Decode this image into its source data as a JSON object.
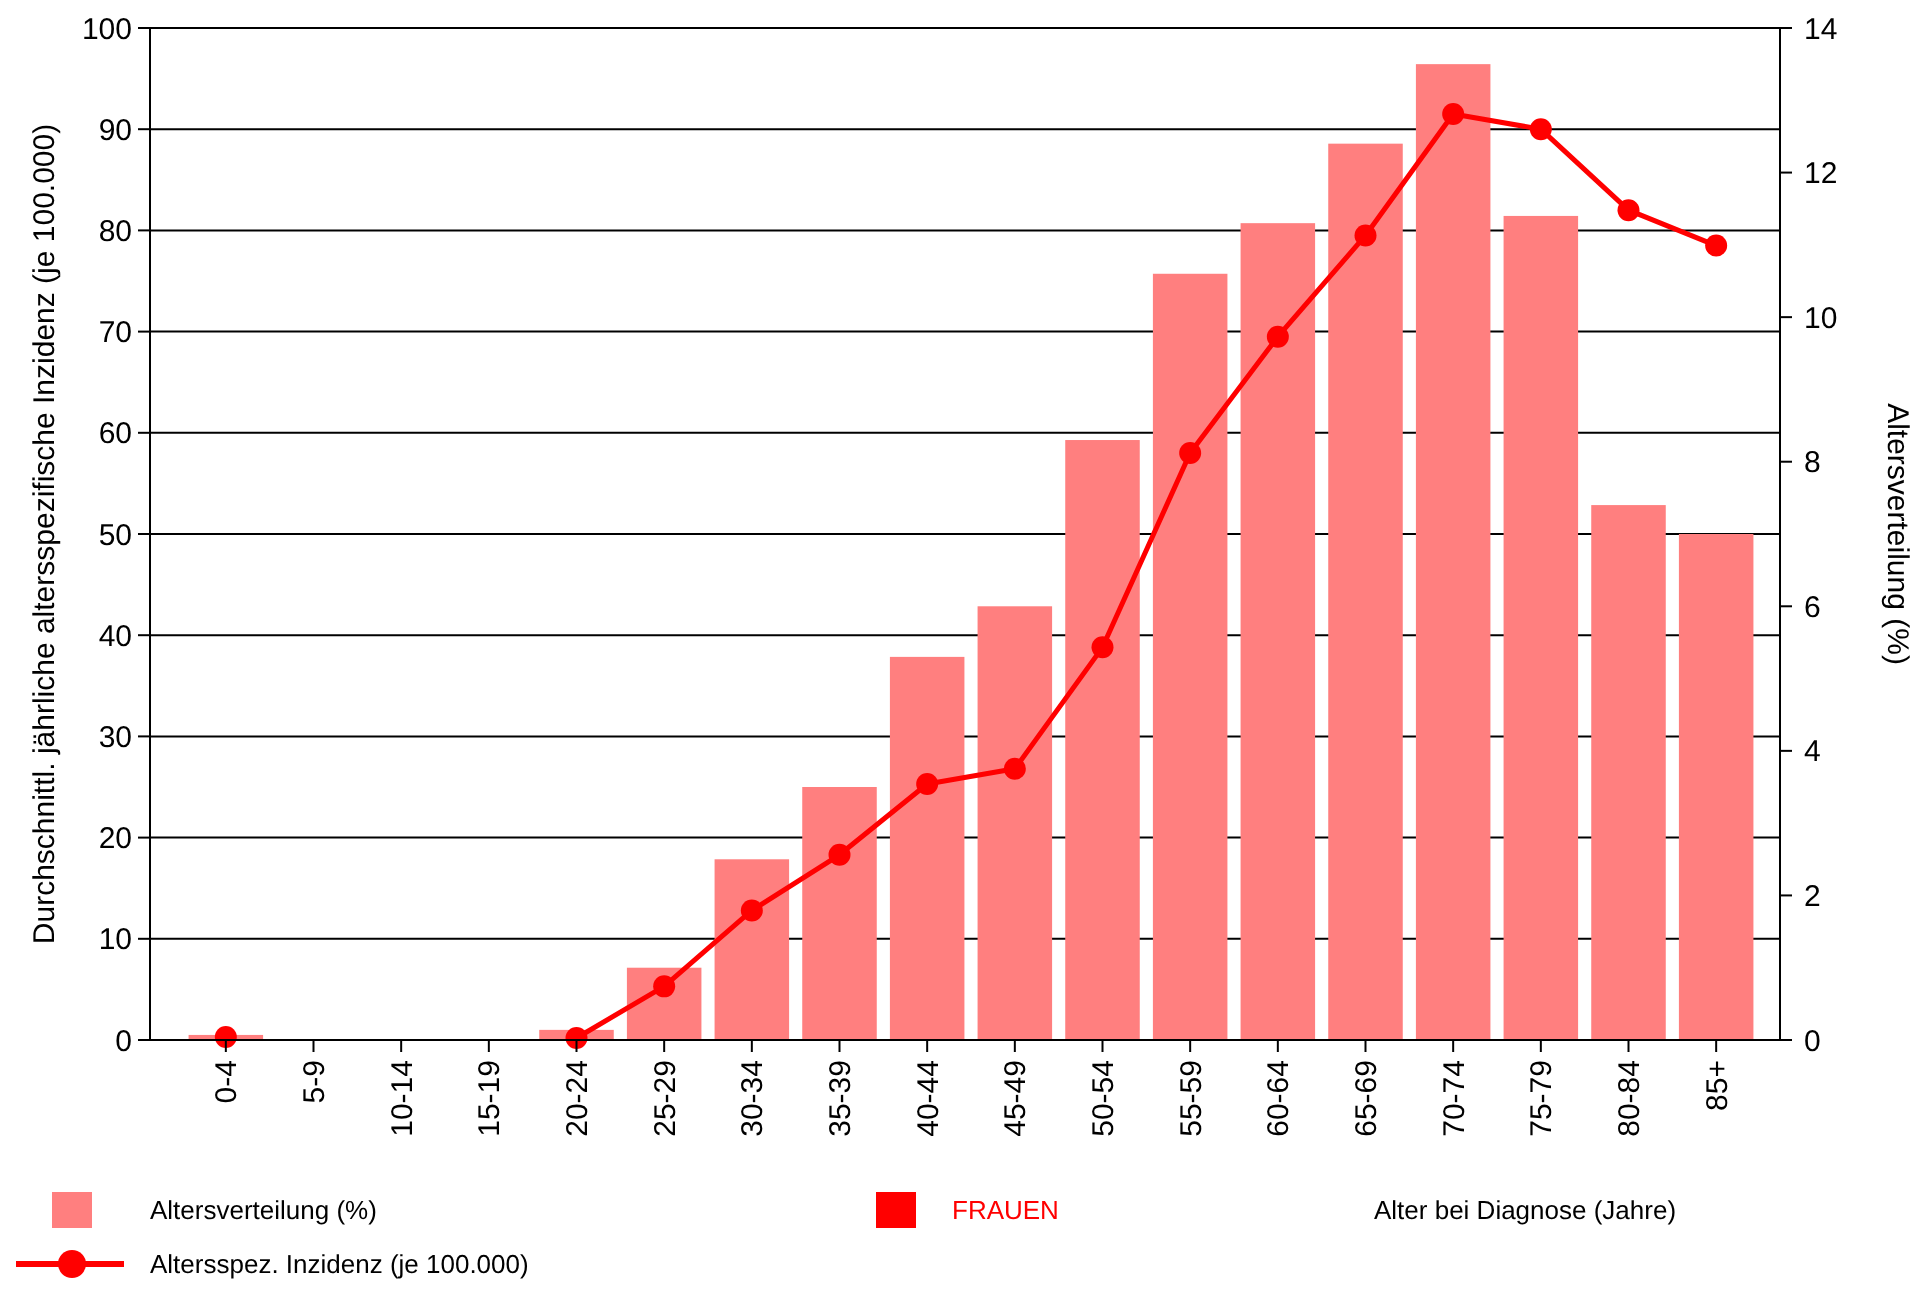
{
  "chart_data": {
    "type": "bar",
    "xlabel": "Alter bei Diagnose (Jahre)",
    "ylabel": "Durchschnittl. jährliche altersspezifische Inzidenz (je 100.000)",
    "y2label": "Altersverteilung (%)",
    "legend_title": "FRAUEN",
    "categories": [
      "0-4",
      "5-9",
      "10-14",
      "15-19",
      "20-24",
      "25-29",
      "30-34",
      "35-39",
      "40-44",
      "45-49",
      "50-54",
      "55-59",
      "60-64",
      "65-69",
      "70-74",
      "75-79",
      "80-84",
      "85+"
    ],
    "series": [
      {
        "name": "Altersverteilung (%)",
        "axis": "y2",
        "color": "#ff7f7f",
        "values": [
          0.07,
          0,
          0,
          0,
          0.14,
          1.0,
          2.5,
          3.5,
          5.3,
          6.0,
          8.3,
          10.6,
          11.3,
          12.4,
          13.5,
          11.4,
          7.4,
          7.0
        ]
      },
      {
        "name": "Altersspez. Inzidenz (je 100.000)",
        "type": "line",
        "color": "#ff0000",
        "marker": "circle",
        "values": [
          0.3,
          null,
          null,
          null,
          0.2,
          5.3,
          12.8,
          18.3,
          25.3,
          26.8,
          38.8,
          58,
          69.5,
          79.5,
          91.5,
          90,
          82,
          78.5
        ]
      }
    ],
    "ylim": [
      0,
      100
    ],
    "yticks": [
      0,
      10,
      20,
      30,
      40,
      50,
      60,
      70,
      80,
      90,
      100
    ],
    "y2lim": [
      0,
      14
    ],
    "y2ticks": [
      0,
      2,
      4,
      6,
      8,
      10,
      12,
      14
    ],
    "grid": "y",
    "legend": "bottom"
  }
}
